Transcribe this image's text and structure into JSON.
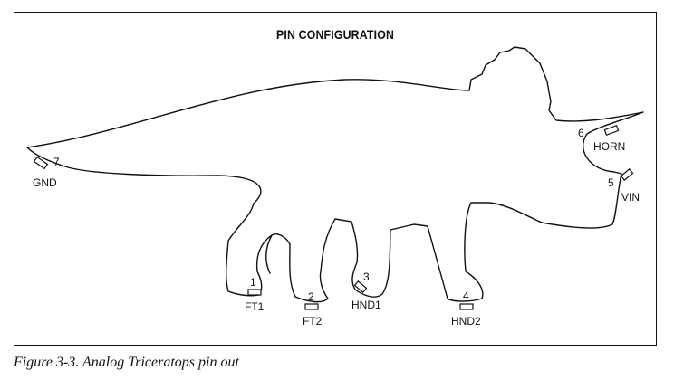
{
  "diagram": {
    "title": "PIN CONFIGURATION",
    "pins": [
      {
        "number": "1",
        "label": "FT1"
      },
      {
        "number": "2",
        "label": "FT2"
      },
      {
        "number": "3",
        "label": "HND1"
      },
      {
        "number": "4",
        "label": "HND2"
      },
      {
        "number": "5",
        "label": "VIN"
      },
      {
        "number": "6",
        "label": "HORN"
      },
      {
        "number": "7",
        "label": "GND"
      }
    ]
  },
  "caption": "Figure 3-3. Analog Triceratops pin out",
  "colors": {
    "line": "#111111",
    "background": "#ffffff"
  }
}
